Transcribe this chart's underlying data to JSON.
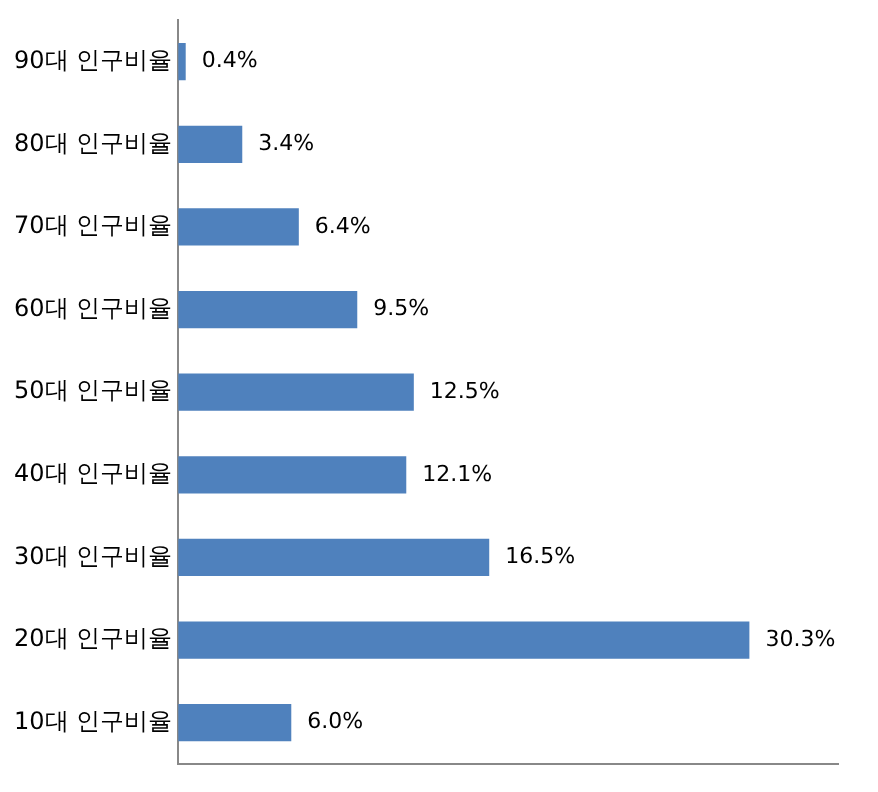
{
  "chart_data": {
    "type": "bar",
    "orientation": "horizontal",
    "categories": [
      "90대 인구비율",
      "80대 인구비율",
      "70대 인구비율",
      "60대 인구비율",
      "50대 인구비율",
      "40대 인구비율",
      "30대 인구비율",
      "20대 인구비율",
      "10대 인구비율"
    ],
    "values": [
      0.4,
      3.4,
      6.4,
      9.5,
      12.5,
      12.1,
      16.5,
      30.3,
      6.0
    ],
    "value_labels": [
      "0.4%",
      "3.4%",
      "6.4%",
      "9.5%",
      "12.5%",
      "12.1%",
      "16.5%",
      "30.3%",
      "6.0%"
    ],
    "color": "#4f81bd",
    "tick_labels": "y",
    "grid": false,
    "legend": false
  }
}
